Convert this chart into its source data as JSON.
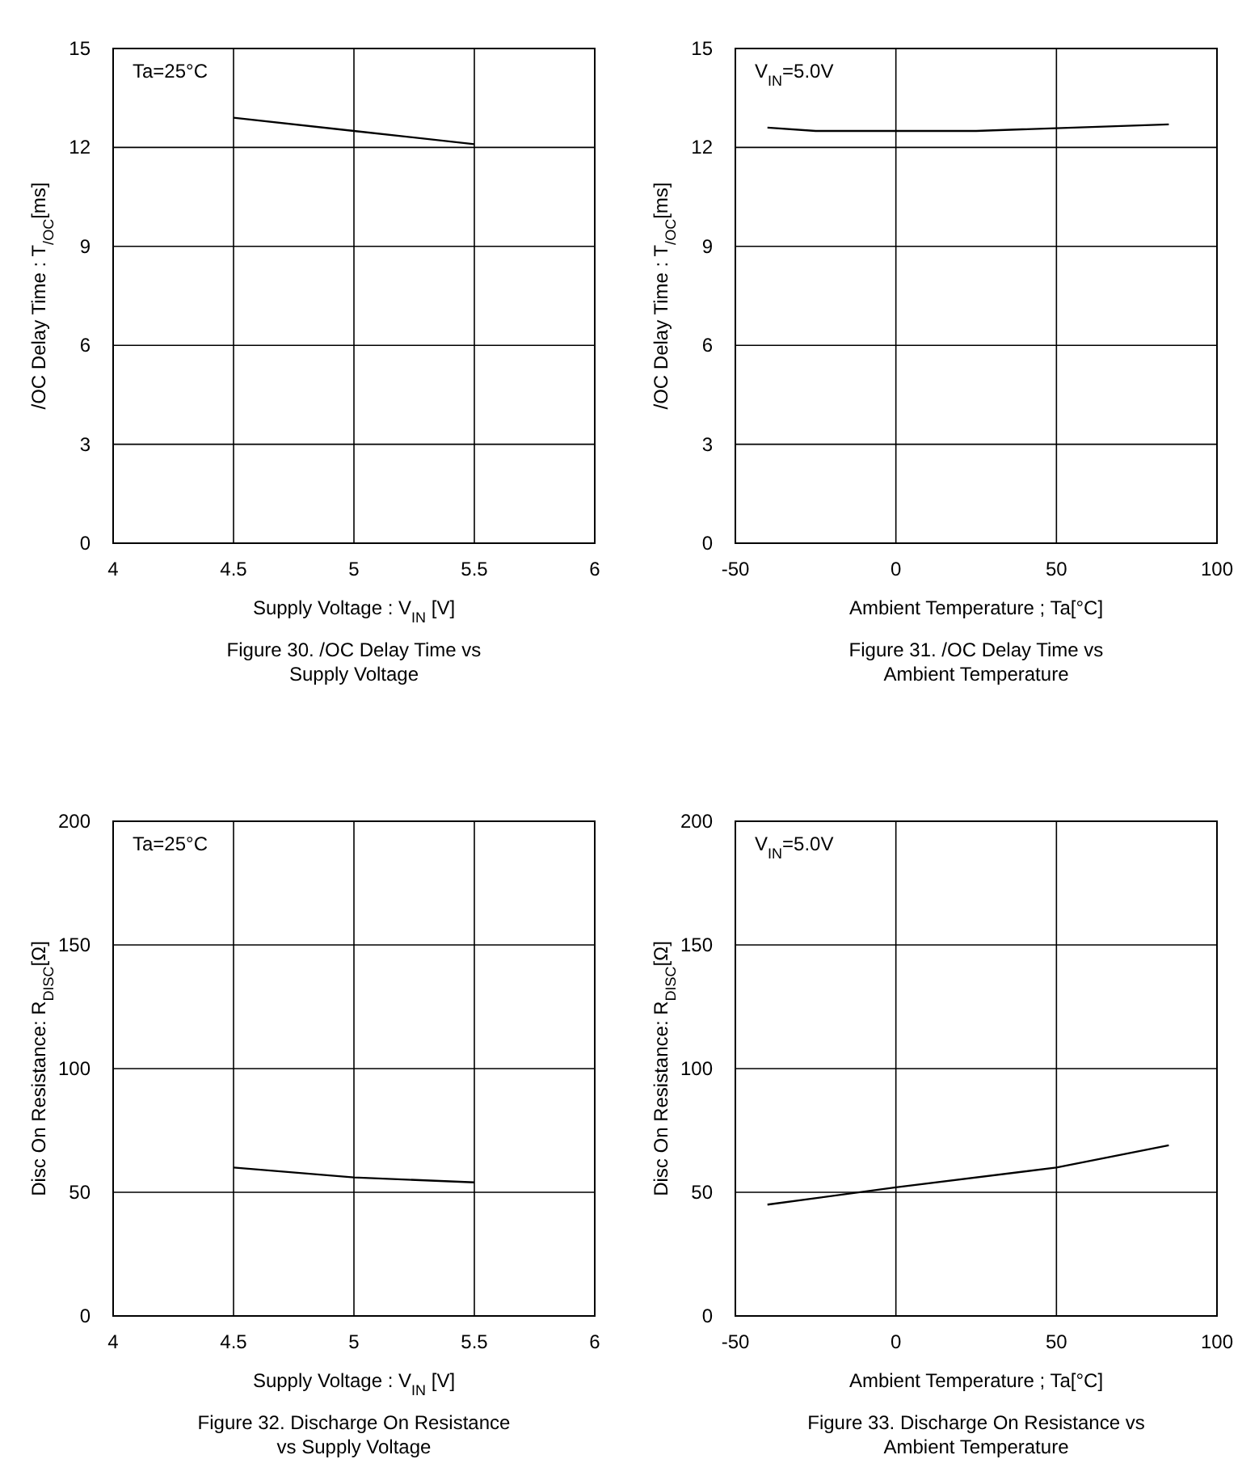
{
  "chart_data": [
    {
      "type": "line",
      "title": "Figure 30. /OC Delay Time vs\nSupply Voltage",
      "xlabel": "Supply Voltage : V$_{IN}$ [V]",
      "ylabel": "/OC Delay Time : T$_{/OC}$[ms]",
      "annotations": [
        "Ta=25°C"
      ],
      "x": [
        4.5,
        5,
        5.5
      ],
      "series": [
        {
          "color": "#000000",
          "values": [
            12.9,
            12.5,
            12.1
          ]
        }
      ],
      "xlim": [
        4,
        6
      ],
      "xticks": [
        4,
        4.5,
        5,
        5.5,
        6
      ],
      "ylim": [
        0,
        15
      ],
      "yticks": [
        0,
        3,
        6,
        9,
        12,
        15
      ],
      "grid": true,
      "marker": "none",
      "line_style": "solid"
    },
    {
      "type": "line",
      "title": "Figure 31. /OC Delay Time vs\nAmbient Temperature",
      "xlabel": "Ambient Temperature ; Ta[°C]",
      "ylabel": "/OC Delay Time : T$_{/OC}$[ms]",
      "annotations": [
        "V$_{IN}$=5.0V"
      ],
      "x": [
        -40,
        -25,
        25,
        85
      ],
      "series": [
        {
          "color": "#000000",
          "values": [
            12.6,
            12.5,
            12.5,
            12.7
          ]
        }
      ],
      "xlim": [
        -50,
        100
      ],
      "xticks": [
        -50,
        0,
        50,
        100
      ],
      "ylim": [
        0,
        15
      ],
      "yticks": [
        0,
        3,
        6,
        9,
        12,
        15
      ],
      "grid": true,
      "marker": "none",
      "line_style": "solid"
    },
    {
      "type": "line",
      "title": "Figure 32. Discharge On Resistance\nvs Supply Voltage",
      "xlabel": "Supply Voltage : V$_{IN}$ [V]",
      "ylabel": "Disc On Resistance: R$_{DISC}$[Ω]",
      "annotations": [
        "Ta=25°C"
      ],
      "x": [
        4.5,
        5,
        5.5
      ],
      "series": [
        {
          "color": "#000000",
          "values": [
            60,
            56,
            54
          ]
        }
      ],
      "xlim": [
        4,
        6
      ],
      "xticks": [
        4,
        4.5,
        5,
        5.5,
        6
      ],
      "ylim": [
        0,
        200
      ],
      "yticks": [
        0,
        50,
        100,
        150,
        200
      ],
      "grid": true,
      "marker": "none",
      "line_style": "solid"
    },
    {
      "type": "line",
      "title": "Figure 33. Discharge On Resistance vs\nAmbient Temperature",
      "xlabel": "Ambient Temperature ; Ta[°C]",
      "ylabel": "Disc On Resistance: R$_{DISC}$[Ω]",
      "annotations": [
        "V$_{IN}$=5.0V"
      ],
      "x": [
        -40,
        0,
        50,
        85
      ],
      "series": [
        {
          "color": "#000000",
          "values": [
            45,
            52,
            60,
            69
          ]
        }
      ],
      "xlim": [
        -50,
        100
      ],
      "xticks": [
        -50,
        0,
        50,
        100
      ],
      "ylim": [
        0,
        200
      ],
      "yticks": [
        0,
        50,
        100,
        150,
        200
      ],
      "grid": true,
      "marker": "none",
      "line_style": "solid"
    }
  ]
}
